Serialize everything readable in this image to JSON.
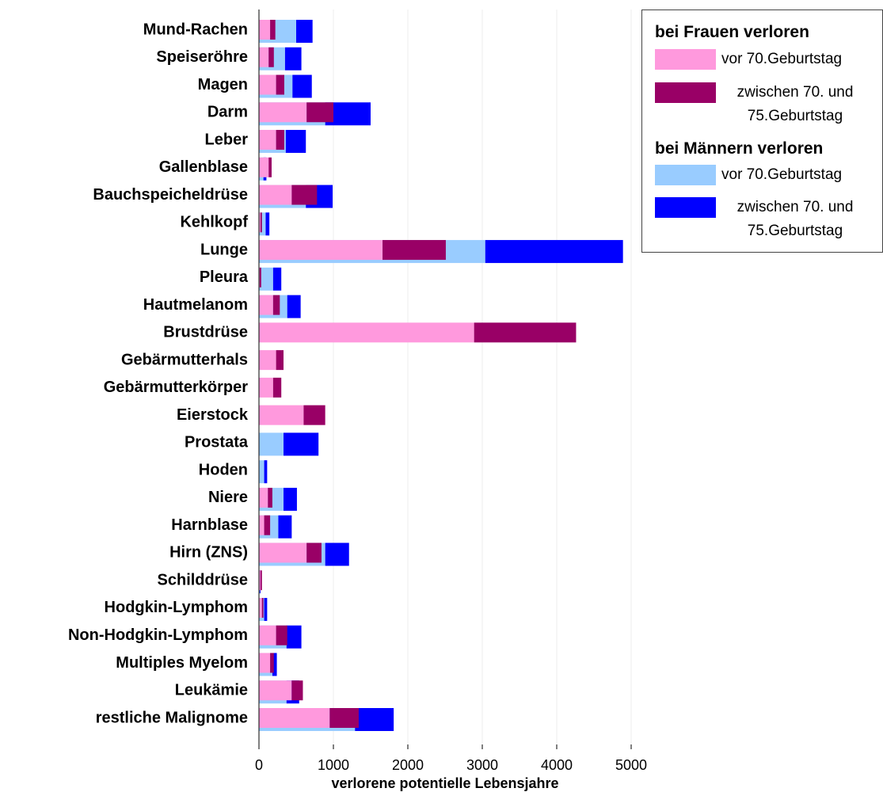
{
  "chart_data": {
    "type": "bar",
    "orientation": "horizontal",
    "x_label": "verlorene potentielle Lebensjahre",
    "categories": [
      "Mund-Rachen",
      "Speiseröhre",
      "Magen",
      "Darm",
      "Leber",
      "Gallenblase",
      "Bauchspeicheldrüse",
      "Kehlkopf",
      "Lunge",
      "Pleura",
      "Hautmelanom",
      "Brustdrüse",
      "Gebärmutterhals",
      "Gebärmutterkörper",
      "Eierstock",
      "Prostata",
      "Hoden",
      "Niere",
      "Harnblase",
      "Hirn (ZNS)",
      "Schilddrüse",
      "Hodgkin-Lymphom",
      "Non-Hodgkin-Lymphom",
      "Multiples Myelom",
      "Leukämie",
      "restliche Malignome"
    ],
    "legend_groups": [
      "bei Frauen verloren",
      "bei Männern verloren"
    ],
    "series": [
      {
        "name": "vor 70.Geburtstag",
        "group": "bei Frauen verloren",
        "color": "#ff99dd",
        "values": [
          150,
          130,
          230,
          640,
          230,
          130,
          440,
          20,
          1660,
          10,
          190,
          2890,
          230,
          190,
          600,
          0,
          0,
          120,
          70,
          640,
          20,
          40,
          230,
          150,
          440,
          950
        ]
      },
      {
        "name": "zwischen 70. und 75.Geburtstag",
        "group": "bei Frauen verloren",
        "color": "#990066",
        "values": [
          70,
          70,
          110,
          360,
          110,
          40,
          340,
          20,
          850,
          20,
          90,
          1370,
          100,
          110,
          290,
          0,
          0,
          60,
          80,
          200,
          20,
          20,
          150,
          50,
          150,
          390
        ]
      },
      {
        "name": "vor 70.Geburtstag",
        "group": "bei Männern verloren",
        "color": "#99ccff",
        "values": [
          500,
          350,
          450,
          890,
          360,
          60,
          630,
          90,
          3040,
          190,
          380,
          0,
          0,
          0,
          0,
          330,
          70,
          330,
          260,
          890,
          10,
          70,
          370,
          180,
          370,
          1290
        ]
      },
      {
        "name": "zwischen 70. und 75.Geburtstag",
        "group": "bei Männern verloren",
        "color": "#0000ff",
        "values": [
          220,
          220,
          260,
          610,
          270,
          40,
          360,
          50,
          1850,
          110,
          180,
          0,
          0,
          0,
          0,
          470,
          40,
          180,
          180,
          320,
          10,
          40,
          200,
          60,
          170,
          520
        ]
      }
    ],
    "xlim": [
      0,
      5000
    ],
    "xticks": [
      0,
      1000,
      2000,
      3000,
      4000,
      5000
    ],
    "grid": true
  }
}
